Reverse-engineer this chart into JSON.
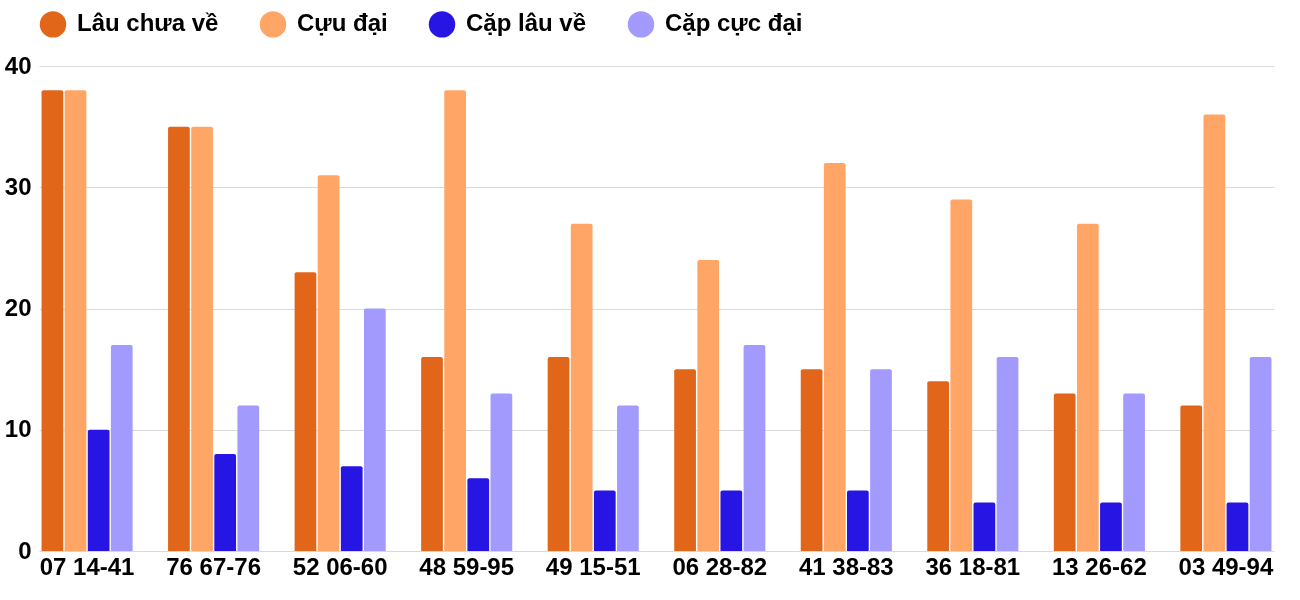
{
  "chart_data": {
    "type": "bar",
    "categories": [
      "07 14-41",
      "76 67-76",
      "52 06-60",
      "48 59-95",
      "49 15-51",
      "06 28-82",
      "41 38-83",
      "36 18-81",
      "13 26-62",
      "03 49-94"
    ],
    "series": [
      {
        "name": "Lâu chưa về",
        "color": "#e2661a",
        "values": [
          38,
          35,
          23,
          16,
          16,
          15,
          15,
          14,
          13,
          12
        ]
      },
      {
        "name": "Cựu đại",
        "color": "#ffa566",
        "values": [
          38,
          35,
          31,
          38,
          27,
          24,
          32,
          29,
          27,
          36
        ]
      },
      {
        "name": "Cặp lâu về",
        "color": "#2715e3",
        "values": [
          10,
          8,
          7,
          6,
          5,
          5,
          5,
          4,
          4,
          4
        ]
      },
      {
        "name": "Cặp cực đại",
        "color": "#a29bfd",
        "values": [
          17,
          12,
          20,
          13,
          12,
          17,
          15,
          16,
          13,
          16
        ]
      }
    ],
    "ylim": [
      0,
      40
    ],
    "yticks": [
      0,
      10,
      20,
      30,
      40
    ],
    "grid": "y",
    "legend": "top"
  }
}
